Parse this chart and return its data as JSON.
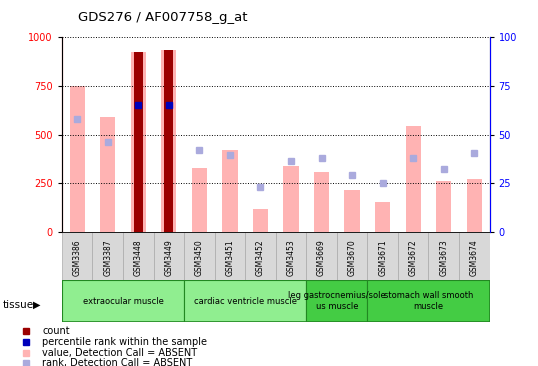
{
  "title": "GDS276 / AF007758_g_at",
  "samples": [
    "GSM3386",
    "GSM3387",
    "GSM3448",
    "GSM3449",
    "GSM3450",
    "GSM3451",
    "GSM3452",
    "GSM3453",
    "GSM3669",
    "GSM3670",
    "GSM3671",
    "GSM3672",
    "GSM3673",
    "GSM3674"
  ],
  "pink_bar_values": [
    750,
    590,
    920,
    930,
    330,
    420,
    120,
    340,
    310,
    215,
    155,
    545,
    265,
    275
  ],
  "dark_red_bar_values": [
    0,
    0,
    920,
    930,
    0,
    0,
    0,
    0,
    0,
    0,
    0,
    0,
    0,
    0
  ],
  "light_blue_sq_values": [
    58,
    46,
    0,
    0,
    42,
    39.5,
    23,
    36.5,
    38,
    29.5,
    25,
    38,
    32.5,
    40.5
  ],
  "dark_blue_sq_values": [
    0,
    0,
    65,
    65,
    0,
    0,
    0,
    0,
    0,
    0,
    0,
    0,
    0,
    0
  ],
  "tissue_groups": [
    {
      "label": "extraocular muscle",
      "start": 0,
      "end": 4,
      "color": "#90ee90"
    },
    {
      "label": "cardiac ventricle muscle",
      "start": 4,
      "end": 8,
      "color": "#90ee90"
    },
    {
      "label": "leg gastrocnemius/sole\nus muscle",
      "start": 8,
      "end": 10,
      "color": "#44cc44"
    },
    {
      "label": "stomach wall smooth\nmuscle",
      "start": 10,
      "end": 14,
      "color": "#44cc44"
    }
  ],
  "ylim_left": [
    0,
    1000
  ],
  "ylim_right": [
    0,
    100
  ],
  "yticks_left": [
    0,
    250,
    500,
    750,
    1000
  ],
  "yticks_right": [
    0,
    25,
    50,
    75,
    100
  ],
  "pink_bar_color": "#ffb3b3",
  "dark_red_bar_color": "#9b0000",
  "light_blue_sq_color": "#aaaadd",
  "dark_blue_sq_color": "#0000bb",
  "bar_width": 0.5,
  "dark_red_bar_width": 0.3
}
